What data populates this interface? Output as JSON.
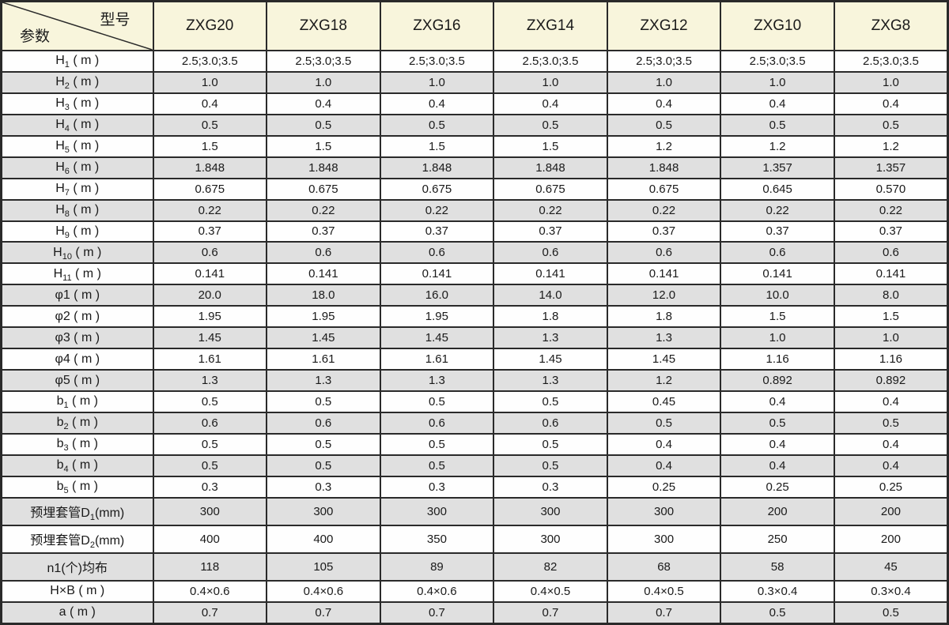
{
  "colors": {
    "header_bg": "#f8f5dc",
    "row_bg": "#fefefe",
    "row_alt_bg": "#e0e0e0",
    "border": "#2a2a2a",
    "text": "#1a1a1a"
  },
  "table": {
    "corner": {
      "model_label": "型号",
      "param_label": "参数"
    },
    "columns": [
      "ZXG20",
      "ZXG18",
      "ZXG16",
      "ZXG14",
      "ZXG12",
      "ZXG10",
      "ZXG8"
    ],
    "rows": [
      {
        "base": "H",
        "sub": "1",
        "rest": " ( m )",
        "values": [
          "2.5;3.0;3.5",
          "2.5;3.0;3.5",
          "2.5;3.0;3.5",
          "2.5;3.0;3.5",
          "2.5;3.0;3.5",
          "2.5;3.0;3.5",
          "2.5;3.0;3.5"
        ]
      },
      {
        "base": "H",
        "sub": "2",
        "rest": " ( m )",
        "values": [
          "1.0",
          "1.0",
          "1.0",
          "1.0",
          "1.0",
          "1.0",
          "1.0"
        ]
      },
      {
        "base": "H",
        "sub": "3",
        "rest": " ( m )",
        "values": [
          "0.4",
          "0.4",
          "0.4",
          "0.4",
          "0.4",
          "0.4",
          "0.4"
        ]
      },
      {
        "base": "H",
        "sub": "4",
        "rest": " ( m )",
        "values": [
          "0.5",
          "0.5",
          "0.5",
          "0.5",
          "0.5",
          "0.5",
          "0.5"
        ]
      },
      {
        "base": "H",
        "sub": "5",
        "rest": " ( m )",
        "values": [
          "1.5",
          "1.5",
          "1.5",
          "1.5",
          "1.2",
          "1.2",
          "1.2"
        ]
      },
      {
        "base": "H",
        "sub": "6",
        "rest": " ( m )",
        "values": [
          "1.848",
          "1.848",
          "1.848",
          "1.848",
          "1.848",
          "1.357",
          "1.357"
        ]
      },
      {
        "base": "H",
        "sub": "7",
        "rest": " ( m )",
        "values": [
          "0.675",
          "0.675",
          "0.675",
          "0.675",
          "0.675",
          "0.645",
          "0.570"
        ]
      },
      {
        "base": "H",
        "sub": "8",
        "rest": " ( m )",
        "values": [
          "0.22",
          "0.22",
          "0.22",
          "0.22",
          "0.22",
          "0.22",
          "0.22"
        ]
      },
      {
        "base": "H",
        "sub": "9",
        "rest": " ( m )",
        "values": [
          "0.37",
          "0.37",
          "0.37",
          "0.37",
          "0.37",
          "0.37",
          "0.37"
        ]
      },
      {
        "base": "H",
        "sub": "10",
        "rest": " ( m )",
        "values": [
          "0.6",
          "0.6",
          "0.6",
          "0.6",
          "0.6",
          "0.6",
          "0.6"
        ]
      },
      {
        "base": "H",
        "sub": "11",
        "rest": " ( m )",
        "values": [
          "0.141",
          "0.141",
          "0.141",
          "0.141",
          "0.141",
          "0.141",
          "0.141"
        ]
      },
      {
        "base": "φ1 ( m )",
        "sub": "",
        "rest": "",
        "values": [
          "20.0",
          "18.0",
          "16.0",
          "14.0",
          "12.0",
          "10.0",
          "8.0"
        ]
      },
      {
        "base": "φ2 ( m )",
        "sub": "",
        "rest": "",
        "values": [
          "1.95",
          "1.95",
          "1.95",
          "1.8",
          "1.8",
          "1.5",
          "1.5"
        ]
      },
      {
        "base": "φ3 ( m )",
        "sub": "",
        "rest": "",
        "values": [
          "1.45",
          "1.45",
          "1.45",
          "1.3",
          "1.3",
          "1.0",
          "1.0"
        ]
      },
      {
        "base": "φ4 ( m )",
        "sub": "",
        "rest": "",
        "values": [
          "1.61",
          "1.61",
          "1.61",
          "1.45",
          "1.45",
          "1.16",
          "1.16"
        ]
      },
      {
        "base": "φ5 ( m )",
        "sub": "",
        "rest": "",
        "values": [
          "1.3",
          "1.3",
          "1.3",
          "1.3",
          "1.2",
          "0.892",
          "0.892"
        ]
      },
      {
        "base": "b",
        "sub": "1",
        "rest": " ( m )",
        "values": [
          "0.5",
          "0.5",
          "0.5",
          "0.5",
          "0.45",
          "0.4",
          "0.4"
        ]
      },
      {
        "base": "b",
        "sub": "2",
        "rest": " ( m )",
        "values": [
          "0.6",
          "0.6",
          "0.6",
          "0.6",
          "0.5",
          "0.5",
          "0.5"
        ]
      },
      {
        "base": "b",
        "sub": "3",
        "rest": " ( m )",
        "values": [
          "0.5",
          "0.5",
          "0.5",
          "0.5",
          "0.4",
          "0.4",
          "0.4"
        ]
      },
      {
        "base": "b",
        "sub": "4",
        "rest": " ( m )",
        "values": [
          "0.5",
          "0.5",
          "0.5",
          "0.5",
          "0.4",
          "0.4",
          "0.4"
        ]
      },
      {
        "base": "b",
        "sub": "5",
        "rest": " ( m )",
        "values": [
          "0.3",
          "0.3",
          "0.3",
          "0.3",
          "0.25",
          "0.25",
          "0.25"
        ]
      },
      {
        "base": "预埋套管D",
        "sub": "1",
        "rest": "(mm)",
        "values": [
          "300",
          "300",
          "300",
          "300",
          "300",
          "200",
          "200"
        ]
      },
      {
        "base": "预埋套管D",
        "sub": "2",
        "rest": "(mm)",
        "values": [
          "400",
          "400",
          "350",
          "300",
          "300",
          "250",
          "200"
        ]
      },
      {
        "base": "n1(个)均布",
        "sub": "",
        "rest": "",
        "values": [
          "118",
          "105",
          "89",
          "82",
          "68",
          "58",
          "45"
        ]
      },
      {
        "base": "H×B ( m )",
        "sub": "",
        "rest": "",
        "values": [
          "0.4×0.6",
          "0.4×0.6",
          "0.4×0.6",
          "0.4×0.5",
          "0.4×0.5",
          "0.3×0.4",
          "0.3×0.4"
        ]
      },
      {
        "base": "a ( m )",
        "sub": "",
        "rest": "",
        "values": [
          "0.7",
          "0.7",
          "0.7",
          "0.7",
          "0.7",
          "0.5",
          "0.5"
        ]
      }
    ]
  }
}
